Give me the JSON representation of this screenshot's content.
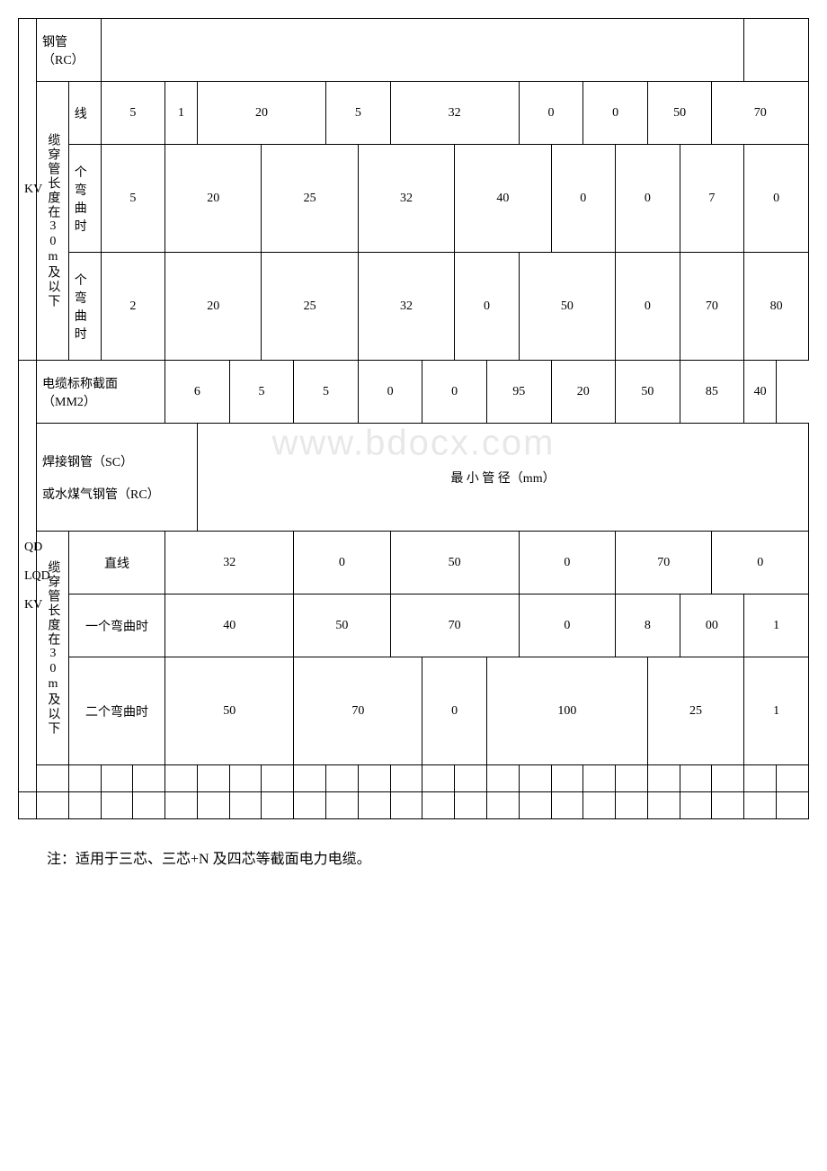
{
  "watermark": "www.bdocx.com",
  "section1": {
    "left_label": "KV",
    "pipe_label": "钢管（RC）",
    "length_label": "缆穿管长度在30m及以下",
    "rows": [
      {
        "label": "线",
        "values": [
          "5",
          "1",
          "20",
          "5",
          "32",
          "0",
          "0",
          "50",
          "70"
        ]
      },
      {
        "label": "个弯曲时",
        "values": [
          "5",
          "20",
          "25",
          "32",
          "40",
          "0",
          "0",
          "7",
          "0"
        ]
      },
      {
        "label": "个弯曲时",
        "values": [
          "2",
          "20",
          "25",
          "32",
          "0",
          "50",
          "0",
          "70",
          "80"
        ]
      }
    ]
  },
  "section2": {
    "left_labels": [
      "QD",
      "LQD",
      "KV"
    ],
    "cross_section_label": "电缆标称截面（MM2）",
    "cross_section_values": [
      "6",
      "5",
      "5",
      "0",
      "0",
      "95",
      "20",
      "50",
      "85",
      "40"
    ],
    "pipe_label2": "焊接钢管（SC）",
    "pipe_label3": "或水煤气钢管（RC）",
    "min_diameter_label": "最 小 管 径（mm）",
    "length_label": "缆穿管长度在30m及以下",
    "rows": [
      {
        "label": "直线",
        "values": [
          "32",
          "0",
          "50",
          "0",
          "70",
          "0"
        ]
      },
      {
        "label": "一个弯曲时",
        "values": [
          "40",
          "50",
          "70",
          "0",
          "8",
          "00",
          "1"
        ]
      },
      {
        "label": "二个弯曲时",
        "values": [
          "50",
          "70",
          "0",
          "100",
          "25",
          "1"
        ]
      }
    ]
  },
  "note_text": "注：适用于三芯、三芯+N 及四芯等截面电力电缆。"
}
